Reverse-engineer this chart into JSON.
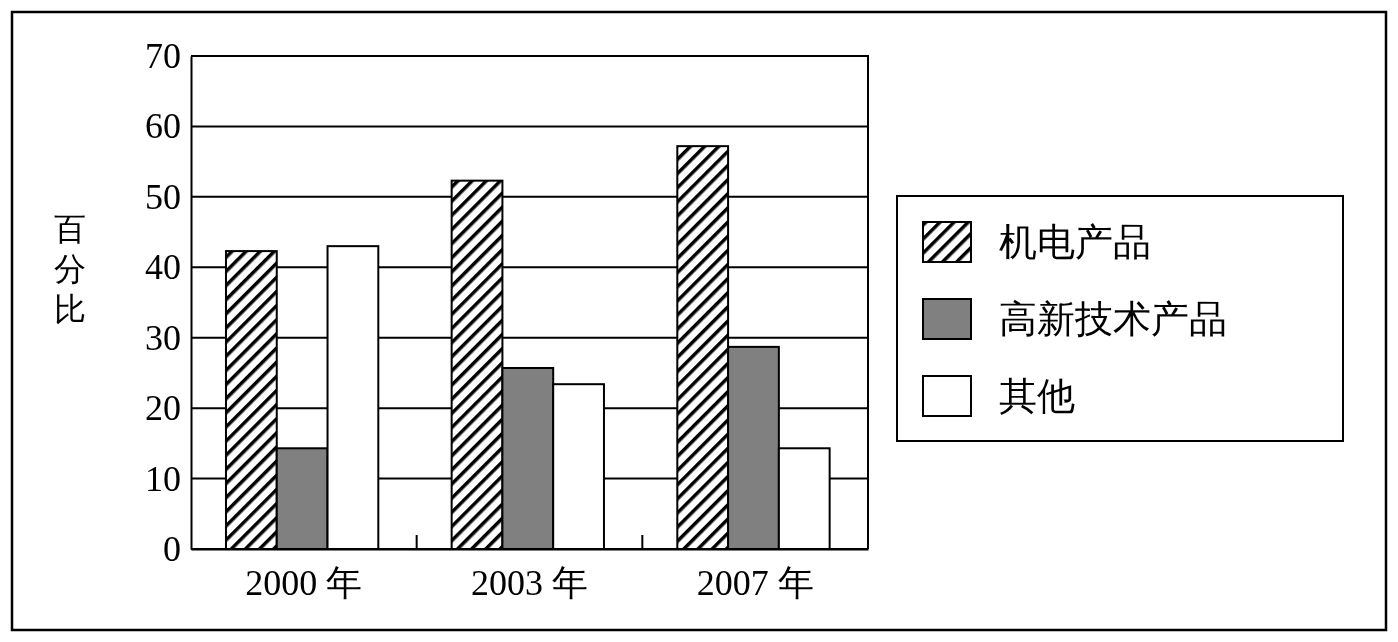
{
  "chart_data": {
    "type": "bar",
    "ylabel": "百分比",
    "categories": [
      "2000 年",
      "2003 年",
      "2007 年"
    ],
    "series": [
      {
        "name": "机电产品",
        "color": "#000000",
        "values": [
          42.3,
          52.3,
          57.2
        ]
      },
      {
        "name": "高新技术产品",
        "color": "#808080",
        "values": [
          14.3,
          25.7,
          28.7
        ]
      },
      {
        "name": "其他",
        "color": "#ffffff",
        "values": [
          43.0,
          23.4,
          14.3
        ]
      }
    ],
    "ylim": [
      0,
      70
    ],
    "yticks": [
      0,
      10,
      20,
      30,
      40,
      50,
      60,
      70
    ],
    "grid": "y",
    "legend": "right"
  }
}
